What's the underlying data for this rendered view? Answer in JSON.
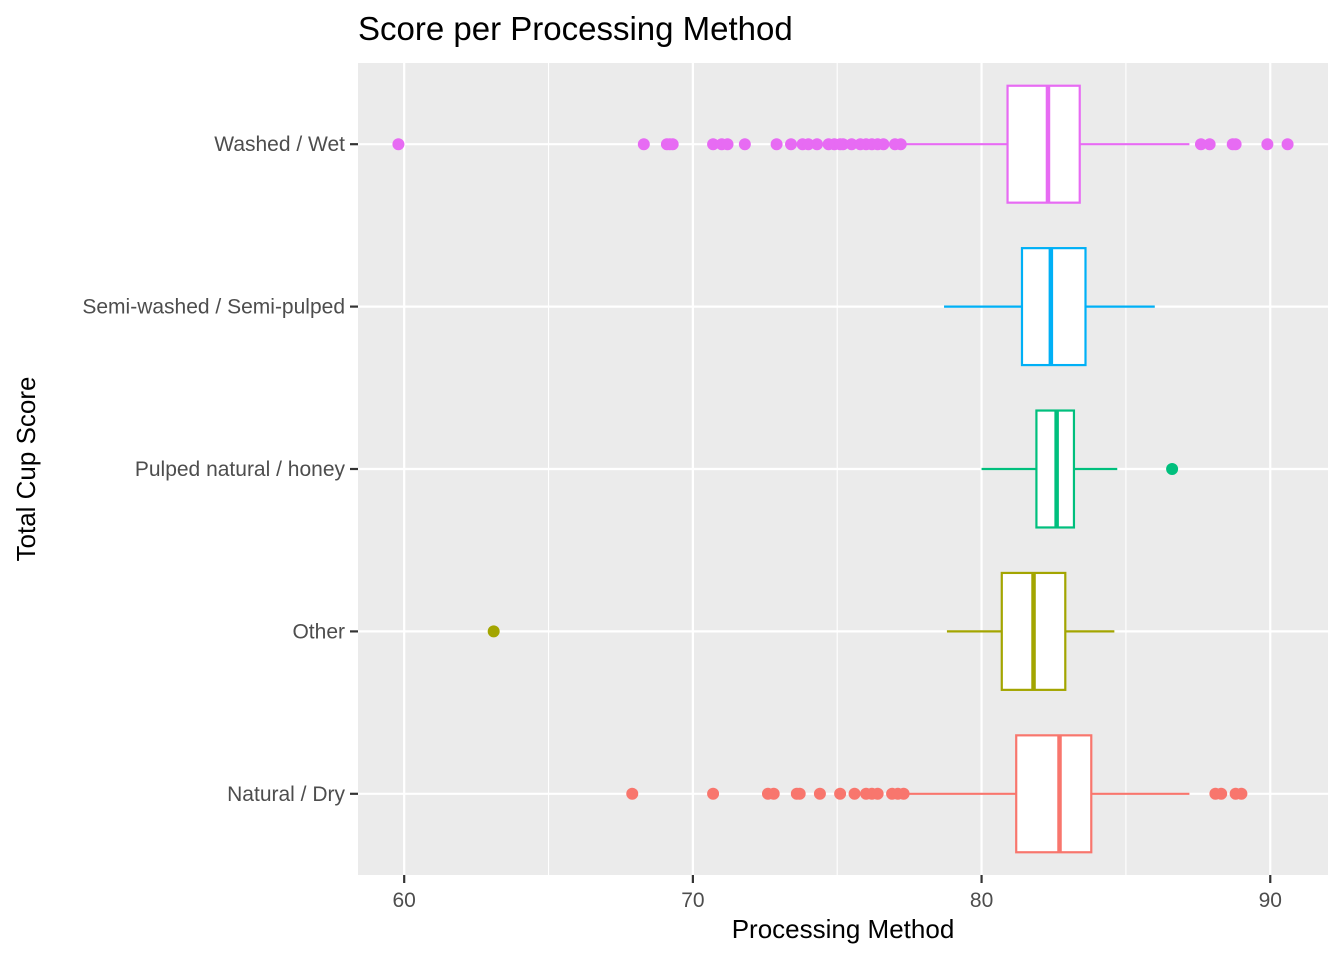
{
  "chart_data": {
    "type": "boxplot",
    "orientation": "horizontal",
    "title": "Score per Processing Method",
    "xlabel": "Processing Method",
    "ylabel": "Total Cup Score",
    "xlim": [
      58.4,
      92.0
    ],
    "xticks": [
      60,
      70,
      80,
      90
    ],
    "grid": true,
    "legend": "none",
    "panel_background": "#ebebeb",
    "grid_color": "#ffffff",
    "categories": [
      "Natural / Dry",
      "Other",
      "Pulped natural / honey",
      "Semi-washed / Semi-pulped",
      "Washed / Wet"
    ],
    "series": [
      {
        "name": "Natural / Dry",
        "color": "#f8766d",
        "whisker_low": 77.5,
        "q1": 81.2,
        "median": 82.7,
        "q3": 83.8,
        "whisker_high": 87.2,
        "outliers": [
          67.9,
          70.7,
          72.6,
          72.8,
          73.6,
          73.7,
          74.4,
          75.1,
          75.6,
          76.0,
          76.2,
          76.4,
          76.9,
          77.1,
          77.3,
          88.1,
          88.3,
          88.8,
          89.0
        ]
      },
      {
        "name": "Other",
        "color": "#a3a500",
        "whisker_low": 78.8,
        "q1": 80.7,
        "median": 81.8,
        "q3": 82.9,
        "whisker_high": 84.6,
        "outliers": [
          63.1
        ]
      },
      {
        "name": "Pulped natural / honey",
        "color": "#00bf7d",
        "whisker_low": 80.0,
        "q1": 81.9,
        "median": 82.6,
        "q3": 83.2,
        "whisker_high": 84.7,
        "outliers": [
          86.6
        ]
      },
      {
        "name": "Semi-washed / Semi-pulped",
        "color": "#00b0f6",
        "whisker_low": 78.7,
        "q1": 81.4,
        "median": 82.4,
        "q3": 83.6,
        "whisker_high": 86.0,
        "outliers": []
      },
      {
        "name": "Washed / Wet",
        "color": "#e76bf3",
        "whisker_low": 77.3,
        "q1": 80.9,
        "median": 82.3,
        "q3": 83.4,
        "whisker_high": 87.2,
        "outliers": [
          59.8,
          68.3,
          69.1,
          69.2,
          69.3,
          70.7,
          71.0,
          71.2,
          71.8,
          72.9,
          73.4,
          73.8,
          74.0,
          74.3,
          74.7,
          74.9,
          75.1,
          75.2,
          75.5,
          75.8,
          76.0,
          76.2,
          76.4,
          76.6,
          77.0,
          77.2,
          87.6,
          87.9,
          88.7,
          88.8,
          89.9,
          90.6
        ]
      }
    ]
  }
}
